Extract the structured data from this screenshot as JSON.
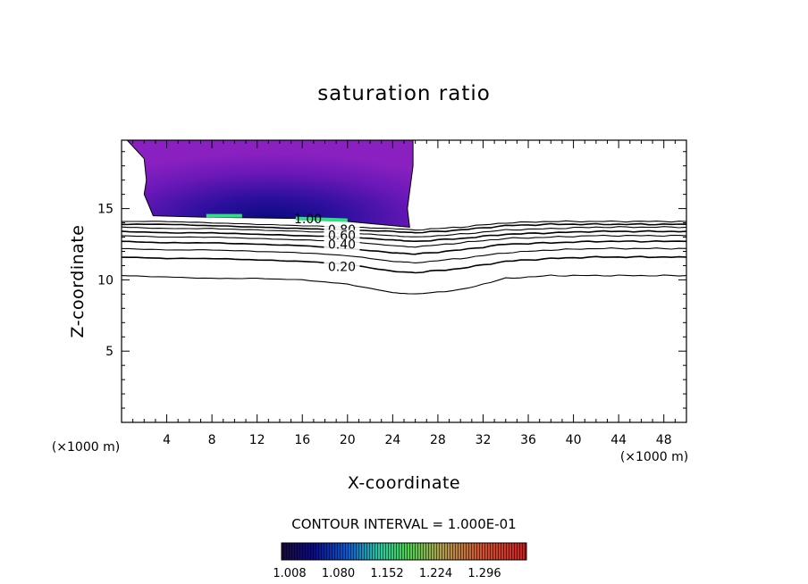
{
  "chart_data": {
    "type": "contour",
    "title": "saturation ratio",
    "xlabel": "X-coordinate",
    "ylabel": "Z-coordinate",
    "x_unit": "(×1000 m)",
    "xlim": [
      0,
      50
    ],
    "ylim": [
      0,
      19.8
    ],
    "xticks": [
      4,
      8,
      12,
      16,
      20,
      24,
      28,
      32,
      36,
      40,
      44,
      48
    ],
    "yticks": [
      5,
      10,
      15
    ],
    "contour_interval_text": "CONTOUR INTERVAL = 1.000E-01",
    "contour_labels": [
      "1.00",
      "0.80",
      "0.60",
      "0.40",
      "0.20"
    ],
    "contours": [
      {
        "level": 0.1,
        "x": [
          0,
          4,
          8,
          12,
          16,
          20,
          24,
          26,
          30,
          34,
          38,
          42,
          46,
          50
        ],
        "z": [
          10.3,
          10.2,
          10.1,
          10.1,
          10.0,
          9.7,
          9.1,
          9.0,
          9.3,
          10.1,
          10.3,
          10.3,
          10.3,
          10.3
        ]
      },
      {
        "level": 0.2,
        "x": [
          0,
          4,
          8,
          12,
          16,
          20,
          24,
          26,
          30,
          34,
          38,
          42,
          46,
          50
        ],
        "z": [
          11.6,
          11.5,
          11.5,
          11.4,
          11.3,
          11.1,
          10.6,
          10.5,
          10.8,
          11.3,
          11.5,
          11.6,
          11.6,
          11.6
        ]
      },
      {
        "level": 0.3,
        "x": [
          0,
          4,
          8,
          12,
          16,
          20,
          24,
          26,
          30,
          34,
          38,
          42,
          46,
          50
        ],
        "z": [
          12.2,
          12.1,
          12.1,
          12.0,
          11.9,
          11.7,
          11.3,
          11.2,
          11.5,
          11.9,
          12.1,
          12.2,
          12.2,
          12.2
        ]
      },
      {
        "level": 0.4,
        "x": [
          0,
          4,
          8,
          12,
          16,
          20,
          24,
          26,
          30,
          34,
          38,
          42,
          46,
          50
        ],
        "z": [
          12.7,
          12.6,
          12.6,
          12.5,
          12.4,
          12.2,
          11.9,
          11.8,
          12.1,
          12.5,
          12.6,
          12.7,
          12.7,
          12.7
        ]
      },
      {
        "level": 0.5,
        "x": [
          0,
          4,
          8,
          12,
          16,
          20,
          24,
          26,
          30,
          34,
          38,
          42,
          46,
          50
        ],
        "z": [
          13.1,
          13.0,
          13.0,
          12.9,
          12.8,
          12.7,
          12.4,
          12.3,
          12.6,
          12.9,
          13.0,
          13.1,
          13.1,
          13.1
        ]
      },
      {
        "level": 0.6,
        "x": [
          0,
          4,
          8,
          12,
          16,
          20,
          24,
          26,
          30,
          34,
          38,
          42,
          46,
          50
        ],
        "z": [
          13.4,
          13.3,
          13.3,
          13.2,
          13.1,
          13.0,
          12.8,
          12.7,
          12.9,
          13.2,
          13.3,
          13.4,
          13.4,
          13.4
        ]
      },
      {
        "level": 0.7,
        "x": [
          0,
          4,
          8,
          12,
          16,
          20,
          24,
          26,
          30,
          34,
          38,
          42,
          46,
          50
        ],
        "z": [
          13.7,
          13.6,
          13.6,
          13.5,
          13.4,
          13.3,
          13.1,
          13.0,
          13.2,
          13.5,
          13.6,
          13.7,
          13.7,
          13.7
        ]
      },
      {
        "level": 0.8,
        "x": [
          0,
          4,
          8,
          12,
          16,
          20,
          24,
          26,
          30,
          34,
          38,
          42,
          46,
          50
        ],
        "z": [
          13.9,
          13.9,
          13.8,
          13.7,
          13.6,
          13.5,
          13.4,
          13.3,
          13.5,
          13.8,
          13.9,
          13.9,
          13.9,
          13.9
        ]
      },
      {
        "level": 0.9,
        "x": [
          0,
          4,
          8,
          12,
          16,
          20,
          24,
          26,
          30,
          34,
          38,
          42,
          46,
          50
        ],
        "z": [
          14.1,
          14.1,
          14.0,
          13.9,
          13.8,
          13.7,
          13.6,
          13.5,
          13.7,
          14.0,
          14.1,
          14.1,
          14.1,
          14.1
        ]
      }
    ],
    "cloud_region": {
      "x": [
        0.5,
        2.0,
        2.2,
        2.0,
        2.8,
        7.5,
        16.0,
        20.0,
        25.5,
        25.3,
        25.8,
        25.8
      ],
      "z": [
        19.8,
        18.5,
        17.0,
        16.0,
        14.5,
        14.4,
        14.3,
        14.1,
        13.7,
        15.0,
        18.0,
        19.8
      ]
    },
    "cloud_max": {
      "x": 16,
      "z": 14.5
    },
    "colorbar": {
      "tick_labels": [
        "1.008",
        "1.080",
        "1.152",
        "1.224",
        "1.296"
      ],
      "colors": [
        "#1a0a3a",
        "#0a0a8a",
        "#0a5ad0",
        "#28c8a0",
        "#50d050",
        "#b0a050",
        "#d05030",
        "#c82020"
      ]
    }
  }
}
